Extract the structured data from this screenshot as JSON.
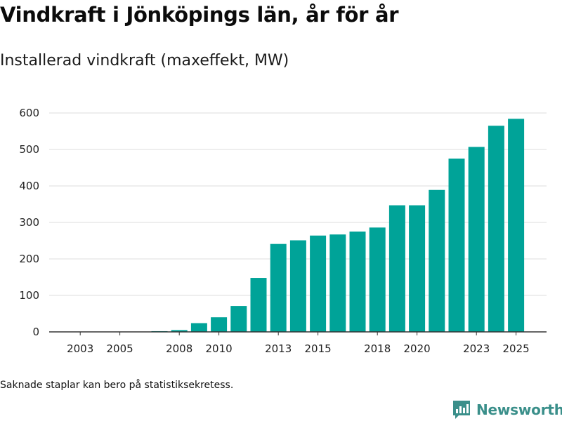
{
  "title": "Vindkraft i Jönköpings län, år för år",
  "subtitle": "Installerad vindkraft (maxeffekt, MW)",
  "footnote": "Saknade staplar kan bero på statistiksekretess.",
  "brand": {
    "name": "Newsworthy",
    "icon": "newsworthy-logo-icon",
    "color": "#3a8f8a"
  },
  "chart_data": {
    "type": "bar",
    "title": "Vindkraft i Jönköpings län, år för år",
    "ylabel": "Installerad vindkraft (maxeffekt, MW)",
    "xlabel": "",
    "bar_color": "#00a398",
    "ylim": [
      0,
      620
    ],
    "yticks": [
      0,
      100,
      200,
      300,
      400,
      500,
      600
    ],
    "xticks": [
      "2003",
      "2005",
      "2008",
      "2010",
      "2013",
      "2015",
      "2018",
      "2020",
      "2023",
      "2025"
    ],
    "categories": [
      "2002",
      "2003",
      "2004",
      "2005",
      "2006",
      "2007",
      "2008",
      "2009",
      "2010",
      "2011",
      "2012",
      "2013",
      "2014",
      "2015",
      "2016",
      "2017",
      "2018",
      "2019",
      "2020",
      "2021",
      "2022",
      "2023",
      "2024",
      "2025"
    ],
    "values": [
      0,
      0,
      0,
      0,
      0,
      2,
      5,
      24,
      40,
      71,
      148,
      241,
      251,
      264,
      267,
      275,
      286,
      347,
      347,
      389,
      475,
      507,
      565,
      584
    ]
  }
}
